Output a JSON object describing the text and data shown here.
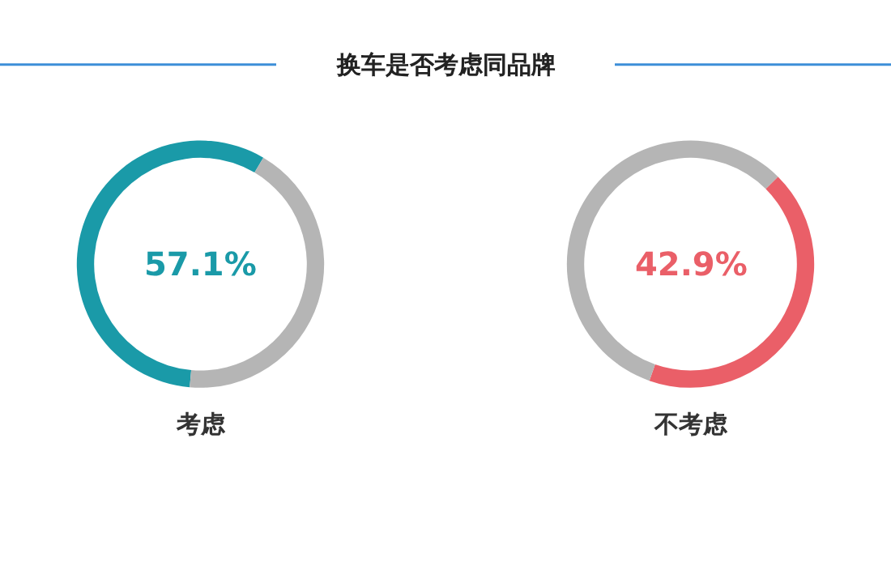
{
  "chart_data": [
    {
      "type": "donut",
      "title": "换车是否考虑同品牌",
      "categories": [
        "考虑",
        null
      ],
      "values": [
        57.1,
        42.9
      ],
      "colors": [
        "#1a9aa8",
        "#b5b5b5"
      ],
      "value_labels": [
        "57.1%",
        null
      ]
    },
    {
      "type": "donut",
      "categories": [
        "不考虑",
        null
      ],
      "values": [
        42.9,
        57.1
      ],
      "colors": [
        "#ea5f68",
        "#b5b5b5"
      ],
      "value_labels": [
        "42.9%",
        null
      ]
    }
  ]
}
